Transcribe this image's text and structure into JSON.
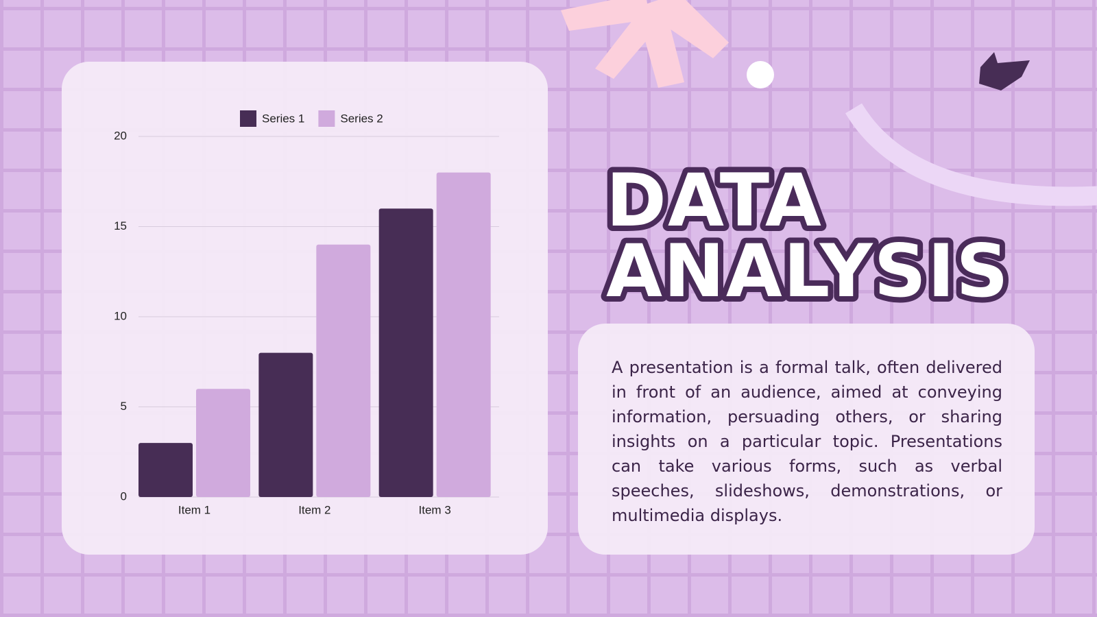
{
  "slide": {
    "title_lines": [
      "DATA",
      "ANALYSIS"
    ],
    "body": "A presentation is a formal talk, often delivered in front of an audience, aimed at conveying information, persuading others, or sharing insights on a particular topic. Presentations can take various forms, such as verbal speeches, slideshows, demonstrations, or multimedia displays."
  },
  "chart_data": {
    "type": "bar",
    "categories": [
      "Item 1",
      "Item 2",
      "Item 3"
    ],
    "series": [
      {
        "name": "Series 1",
        "color": "#472d55",
        "values": [
          3,
          8,
          16
        ]
      },
      {
        "name": "Series 2",
        "color": "#d0aadd",
        "values": [
          6,
          14,
          18
        ]
      }
    ],
    "ylim": [
      0,
      20
    ],
    "yticks": [
      0,
      5,
      10,
      15,
      20
    ],
    "grid": true,
    "legend": "top"
  }
}
